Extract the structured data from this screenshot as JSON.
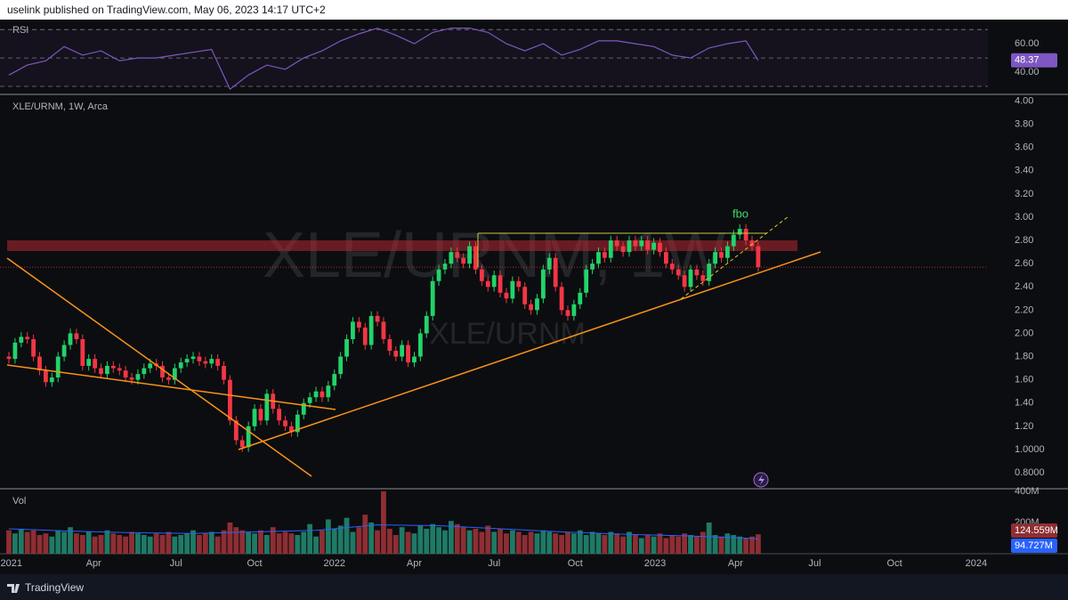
{
  "header": "uselink published on TradingView.com, May 06, 2023 14:17 UTC+2",
  "footer": "TradingView",
  "chart_data": [
    {
      "type": "line",
      "legend": "RSI",
      "color": "#7e57c2",
      "x": [
        0,
        3,
        6,
        9,
        12,
        15,
        18,
        21,
        24,
        27,
        30,
        33,
        36,
        39,
        42,
        45,
        48,
        51,
        54,
        57,
        60,
        63,
        66,
        69,
        72,
        75,
        78,
        81,
        84,
        87,
        90,
        93,
        96,
        99,
        102,
        105,
        108,
        111,
        114,
        117,
        120,
        122
      ],
      "values": [
        38,
        45,
        48,
        58,
        52,
        55,
        48,
        50,
        50,
        52,
        54,
        56,
        28,
        38,
        45,
        42,
        50,
        55,
        62,
        67,
        71,
        66,
        60,
        68,
        71,
        71,
        68,
        60,
        55,
        60,
        52,
        56,
        62,
        62,
        60,
        58,
        52,
        50,
        57,
        60,
        62,
        48.37
      ],
      "ylim": [
        25,
        77
      ],
      "yticks": [
        {
          "value": 60,
          "label": "60.00"
        },
        {
          "value": 40,
          "label": "40.00"
        }
      ],
      "levels": [
        70,
        50,
        30
      ]
    },
    {
      "type": "candlestick",
      "legend": "XLE/URNM, 1W, Arca",
      "watermark": "XLE/URNM, 1W",
      "watermark_sub": "XLE/URNM",
      "annotation": "fbo",
      "colors": {
        "up": "#22d36a",
        "down": "#f23645"
      },
      "grid": false,
      "ylim": [
        0.67,
        4.05
      ],
      "yticks": [
        {
          "value": 4,
          "label": "4.00"
        },
        {
          "value": 3.8,
          "label": "3.80"
        },
        {
          "value": 3.6,
          "label": "3.60"
        },
        {
          "value": 3.4,
          "label": "3.40"
        },
        {
          "value": 3.2,
          "label": "3.20"
        },
        {
          "value": 3,
          "label": "3.00"
        },
        {
          "value": 2.8,
          "label": "2.80"
        },
        {
          "value": 2.6,
          "label": "2.60"
        },
        {
          "value": 2.4,
          "label": "2.40"
        },
        {
          "value": 2.2,
          "label": "2.20"
        },
        {
          "value": 2,
          "label": "2.00"
        },
        {
          "value": 1.8,
          "label": "1.80"
        },
        {
          "value": 1.6,
          "label": "1.60"
        },
        {
          "value": 1.4,
          "label": "1.40"
        },
        {
          "value": 1.2,
          "label": "1.20"
        },
        {
          "value": 1,
          "label": "1.0000"
        },
        {
          "value": 0.8,
          "label": "0.8000"
        }
      ],
      "open": [
        1.8,
        1.78,
        1.92,
        1.97,
        1.95,
        1.8,
        1.68,
        1.58,
        1.62,
        1.8,
        1.9,
        2.0,
        1.95,
        1.72,
        1.78,
        1.7,
        1.65,
        1.72,
        1.7,
        1.68,
        1.62,
        1.6,
        1.65,
        1.7,
        1.74,
        1.72,
        1.62,
        1.6,
        1.7,
        1.75,
        1.78,
        1.8,
        1.76,
        1.74,
        1.78,
        1.72,
        1.6,
        1.25,
        1.08,
        1.02,
        1.2,
        1.35,
        1.25,
        1.48,
        1.35,
        1.25,
        1.2,
        1.15,
        1.3,
        1.4,
        1.45,
        1.5,
        1.45,
        1.55,
        1.65,
        1.8,
        1.95,
        2.1,
        2.05,
        1.9,
        2.15,
        2.1,
        1.95,
        1.85,
        1.8,
        1.9,
        1.75,
        1.8,
        2.0,
        2.15,
        2.45,
        2.55,
        2.6,
        2.7,
        2.65,
        2.6,
        2.75,
        2.55,
        2.45,
        2.4,
        2.5,
        2.35,
        2.3,
        2.45,
        2.4,
        2.25,
        2.2,
        2.3,
        2.55,
        2.65,
        2.4,
        2.2,
        2.15,
        2.25,
        2.35,
        2.55,
        2.6,
        2.7,
        2.65,
        2.8,
        2.75,
        2.7,
        2.8,
        2.75,
        2.8,
        2.72,
        2.78,
        2.7,
        2.6,
        2.55,
        2.5,
        2.4,
        2.55,
        2.5,
        2.45,
        2.6,
        2.7,
        2.65,
        2.75,
        2.85,
        2.9,
        2.8,
        2.75
      ],
      "high": [
        1.84,
        1.96,
        2.01,
        2.01,
        1.99,
        1.84,
        1.72,
        1.66,
        1.84,
        1.94,
        2.04,
        2.04,
        1.99,
        1.82,
        1.82,
        1.74,
        1.76,
        1.76,
        1.74,
        1.72,
        1.66,
        1.69,
        1.74,
        1.78,
        1.78,
        1.76,
        1.66,
        1.74,
        1.79,
        1.82,
        1.84,
        1.84,
        1.8,
        1.82,
        1.82,
        1.76,
        1.64,
        1.29,
        1.12,
        1.24,
        1.39,
        1.39,
        1.52,
        1.52,
        1.39,
        1.29,
        1.24,
        1.34,
        1.44,
        1.49,
        1.54,
        1.54,
        1.59,
        1.69,
        1.84,
        1.99,
        2.14,
        2.14,
        2.09,
        2.19,
        2.19,
        2.14,
        1.99,
        1.89,
        1.94,
        1.94,
        1.84,
        2.04,
        2.19,
        2.49,
        2.59,
        2.64,
        2.74,
        2.74,
        2.69,
        2.79,
        2.79,
        2.59,
        2.49,
        2.54,
        2.54,
        2.39,
        2.49,
        2.49,
        2.44,
        2.29,
        2.34,
        2.59,
        2.69,
        2.69,
        2.44,
        2.24,
        2.29,
        2.39,
        2.59,
        2.64,
        2.74,
        2.74,
        2.84,
        2.84,
        2.79,
        2.84,
        2.84,
        2.84,
        2.84,
        2.82,
        2.82,
        2.74,
        2.64,
        2.59,
        2.54,
        2.59,
        2.59,
        2.54,
        2.64,
        2.74,
        2.74,
        2.79,
        2.89,
        2.94,
        2.94,
        2.84,
        2.79
      ],
      "low": [
        1.74,
        1.74,
        1.88,
        1.91,
        1.76,
        1.64,
        1.54,
        1.54,
        1.58,
        1.76,
        1.86,
        1.91,
        1.68,
        1.68,
        1.66,
        1.61,
        1.61,
        1.66,
        1.64,
        1.58,
        1.56,
        1.56,
        1.61,
        1.66,
        1.68,
        1.58,
        1.56,
        1.56,
        1.66,
        1.71,
        1.74,
        1.72,
        1.7,
        1.7,
        1.68,
        1.56,
        1.21,
        1.04,
        0.98,
        0.98,
        1.16,
        1.21,
        1.21,
        1.31,
        1.21,
        1.16,
        1.11,
        1.11,
        1.26,
        1.36,
        1.41,
        1.41,
        1.41,
        1.51,
        1.61,
        1.76,
        1.91,
        2.01,
        1.86,
        1.86,
        2.06,
        1.91,
        1.81,
        1.76,
        1.76,
        1.71,
        1.71,
        1.76,
        1.96,
        2.11,
        2.41,
        2.51,
        2.56,
        2.61,
        2.56,
        2.56,
        2.51,
        2.41,
        2.36,
        2.36,
        2.31,
        2.26,
        2.26,
        2.36,
        2.21,
        2.16,
        2.16,
        2.26,
        2.51,
        2.36,
        2.16,
        2.11,
        2.11,
        2.21,
        2.31,
        2.51,
        2.56,
        2.61,
        2.61,
        2.71,
        2.66,
        2.66,
        2.71,
        2.71,
        2.68,
        2.68,
        2.66,
        2.56,
        2.51,
        2.46,
        2.36,
        2.36,
        2.46,
        2.41,
        2.41,
        2.56,
        2.61,
        2.61,
        2.71,
        2.81,
        2.76,
        2.71,
        2.53
      ],
      "close": [
        1.78,
        1.92,
        1.97,
        1.95,
        1.8,
        1.68,
        1.58,
        1.62,
        1.8,
        1.9,
        2.0,
        1.95,
        1.72,
        1.78,
        1.7,
        1.65,
        1.72,
        1.7,
        1.68,
        1.62,
        1.6,
        1.65,
        1.7,
        1.74,
        1.72,
        1.62,
        1.6,
        1.7,
        1.75,
        1.78,
        1.8,
        1.76,
        1.74,
        1.78,
        1.72,
        1.6,
        1.25,
        1.08,
        1.02,
        1.2,
        1.35,
        1.25,
        1.48,
        1.35,
        1.25,
        1.2,
        1.15,
        1.3,
        1.4,
        1.45,
        1.5,
        1.45,
        1.55,
        1.65,
        1.8,
        1.95,
        2.1,
        2.05,
        1.9,
        2.15,
        2.1,
        1.95,
        1.85,
        1.8,
        1.9,
        1.75,
        1.8,
        2.0,
        2.15,
        2.45,
        2.55,
        2.6,
        2.7,
        2.65,
        2.6,
        2.75,
        2.55,
        2.45,
        2.4,
        2.5,
        2.35,
        2.3,
        2.45,
        2.4,
        2.25,
        2.2,
        2.3,
        2.55,
        2.65,
        2.4,
        2.2,
        2.15,
        2.25,
        2.35,
        2.55,
        2.6,
        2.7,
        2.65,
        2.8,
        2.75,
        2.7,
        2.8,
        2.75,
        2.8,
        2.72,
        2.78,
        2.7,
        2.6,
        2.55,
        2.5,
        2.4,
        2.55,
        2.5,
        2.45,
        2.6,
        2.7,
        2.65,
        2.75,
        2.85,
        2.9,
        2.8,
        2.75,
        2.57
      ]
    },
    {
      "type": "bar",
      "legend": "Vol",
      "colors": {
        "up": "#1e7a66",
        "down": "#8e2e33"
      },
      "xlim": [
        -1.45,
        159.4
      ],
      "xticks": [
        {
          "value": 0.4,
          "label": "2021"
        },
        {
          "value": 13.8,
          "label": "Apr"
        },
        {
          "value": 27.2,
          "label": "Jul"
        },
        {
          "value": 40,
          "label": "Oct"
        },
        {
          "value": 53,
          "label": "2022"
        },
        {
          "value": 66,
          "label": "Apr"
        },
        {
          "value": 79,
          "label": "Jul"
        },
        {
          "value": 92.2,
          "label": "Oct"
        },
        {
          "value": 105.2,
          "label": "2023"
        },
        {
          "value": 118.3,
          "label": "Apr"
        },
        {
          "value": 131.2,
          "label": "Jul"
        },
        {
          "value": 144.2,
          "label": "Oct"
        },
        {
          "value": 157.5,
          "label": "2024"
        }
      ],
      "ylim": [
        0,
        411
      ],
      "yticks": [
        {
          "value": 400,
          "label": "400M"
        },
        {
          "value": 200,
          "label": "200M"
        }
      ],
      "values": [
        150,
        130,
        160,
        140,
        150,
        120,
        130,
        110,
        150,
        140,
        170,
        130,
        120,
        140,
        110,
        120,
        150,
        130,
        120,
        110,
        140,
        130,
        120,
        110,
        130,
        120,
        140,
        110,
        120,
        130,
        150,
        120,
        130,
        140,
        110,
        150,
        200,
        170,
        150,
        140,
        130,
        150,
        120,
        170,
        130,
        140,
        130,
        120,
        140,
        190,
        110,
        150,
        220,
        160,
        180,
        230,
        140,
        170,
        250,
        200,
        150,
        400,
        160,
        120,
        170,
        140,
        130,
        180,
        160,
        190,
        170,
        150,
        210,
        190,
        170,
        150,
        160,
        140,
        180,
        140,
        160,
        130,
        150,
        140,
        120,
        140,
        130,
        150,
        140,
        130,
        120,
        140,
        130,
        150,
        120,
        140,
        130,
        120,
        140,
        130,
        110,
        140,
        120,
        100,
        120,
        110,
        130,
        100,
        120,
        110,
        130,
        120,
        110,
        140,
        200,
        120,
        110,
        130,
        120,
        110,
        100,
        110,
        124.559
      ],
      "value_labels": [
        null,
        null,
        null,
        null,
        null,
        null,
        null,
        null,
        null,
        null,
        null,
        null,
        null,
        null,
        null,
        null,
        null,
        null,
        null,
        null,
        null,
        null,
        null,
        null,
        null,
        null,
        null,
        null,
        null,
        null,
        null,
        null,
        null,
        null,
        null,
        null,
        null,
        null,
        null,
        null,
        null,
        null,
        null,
        null,
        null,
        null,
        null,
        null,
        null,
        null,
        null,
        null,
        null,
        null,
        null,
        null,
        null,
        null,
        null,
        null,
        null,
        null,
        null,
        null,
        null,
        null,
        null,
        null,
        null,
        null,
        null,
        null,
        null,
        null,
        null,
        null,
        null,
        null,
        null,
        null,
        null,
        null,
        null,
        null,
        null,
        null,
        null,
        null,
        null,
        null,
        null,
        null,
        null,
        null,
        null,
        null,
        null,
        null,
        null,
        null,
        null,
        null,
        null,
        null,
        null,
        null,
        null,
        null,
        null,
        null,
        null,
        null,
        null,
        null,
        null,
        null,
        null,
        null,
        null,
        null,
        null,
        null,
        "124.559M"
      ],
      "ma": {
        "color": "#2962ff",
        "x": [
          0,
          10,
          20,
          30,
          40,
          50,
          60,
          70,
          80,
          90,
          100,
          110,
          120,
          122
        ],
        "values": [
          160,
          145,
          135,
          130,
          140,
          150,
          185,
          180,
          160,
          140,
          125,
          115,
          100,
          94.727
        ],
        "value_labels": [
          null,
          null,
          null,
          null,
          null,
          null,
          null,
          null,
          null,
          null,
          null,
          null,
          null,
          "94.727M"
        ]
      }
    }
  ]
}
